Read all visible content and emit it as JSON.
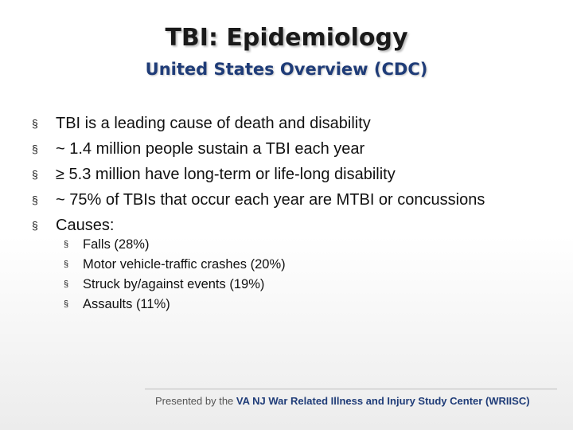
{
  "slide": {
    "title": "TBI: Epidemiology",
    "subtitle": "United States Overview (CDC)",
    "bullet_marker": "§",
    "bullets": [
      "TBI is a leading cause of death and disability",
      "~ 1.4 million people sustain a TBI each year",
      "≥ 5.3 million have long-term or life-long disability",
      "~ 75% of TBIs that occur each year are MTBI or concussions",
      "Causes:"
    ],
    "sub_bullets": [
      "Falls (28%)",
      "Motor vehicle-traffic crashes (20%)",
      "Struck by/against events (19%)",
      "Assaults (11%)"
    ],
    "footer": {
      "prefix": "Presented by the ",
      "organization": "VA NJ War Related Illness and Injury Study Center (WRIISC)"
    }
  }
}
